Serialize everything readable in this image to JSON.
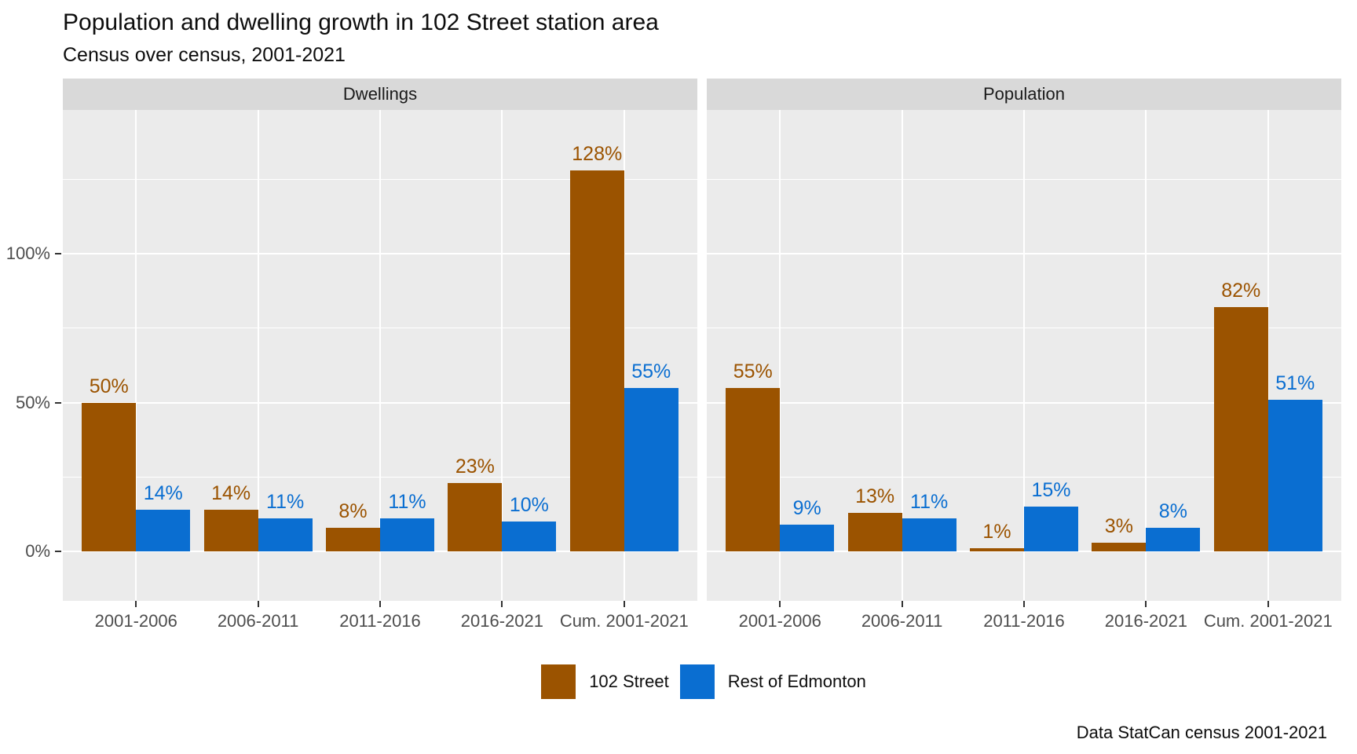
{
  "title": "Population and dwelling growth in 102 Street station area",
  "subtitle": "Census over census, 2001-2021",
  "caption": "Data StatCan census 2001-2021",
  "colors": {
    "series_102_street": "#9B5300",
    "series_rest_of_edmonton": "#0A6ED1",
    "panel_bg": "#EBEBEB",
    "strip_bg": "#D9D9D9",
    "gridline": "#FFFFFF",
    "axis_text": "#4D4D4D",
    "tick_mark": "#333333"
  },
  "y_axis": {
    "ticks": [
      {
        "label": "0%",
        "value": 0
      },
      {
        "label": "50%",
        "value": 50
      },
      {
        "label": "100%",
        "value": 100
      }
    ]
  },
  "legend": {
    "items": [
      {
        "label": "102 Street",
        "color": "#9B5300"
      },
      {
        "label": "Rest of Edmonton",
        "color": "#0A6ED1"
      }
    ],
    "position": "bottom"
  },
  "chart_data": {
    "type": "bar",
    "grouping": "dodged",
    "title": "Population and dwelling growth in 102 Street station area",
    "subtitle": "Census over census, 2001-2021",
    "caption": "Data StatCan census 2001-2021",
    "value_suffix": "%",
    "categories": [
      "2001-2006",
      "2006-2011",
      "2011-2016",
      "2016-2021",
      "Cum. 2001-2021"
    ],
    "facets": [
      {
        "label": "Dwellings",
        "series": [
          {
            "name": "102 Street",
            "color": "#9B5300",
            "values": [
              50,
              14,
              8,
              23,
              128
            ]
          },
          {
            "name": "Rest of Edmonton",
            "color": "#0A6ED1",
            "values": [
              14,
              11,
              11,
              10,
              55
            ]
          }
        ]
      },
      {
        "label": "Population",
        "series": [
          {
            "name": "102 Street",
            "color": "#9B5300",
            "values": [
              55,
              13,
              1,
              3,
              82
            ]
          },
          {
            "name": "Rest of Edmonton",
            "color": "#0A6ED1",
            "values": [
              9,
              11,
              15,
              8,
              51
            ]
          }
        ]
      }
    ],
    "ylim": [
      -17,
      148
    ],
    "gridlines": {
      "major": [
        0,
        50,
        100
      ],
      "minor": [
        25,
        75,
        125
      ],
      "grid_on": true
    },
    "data_labels": true,
    "legend_position": "bottom"
  }
}
